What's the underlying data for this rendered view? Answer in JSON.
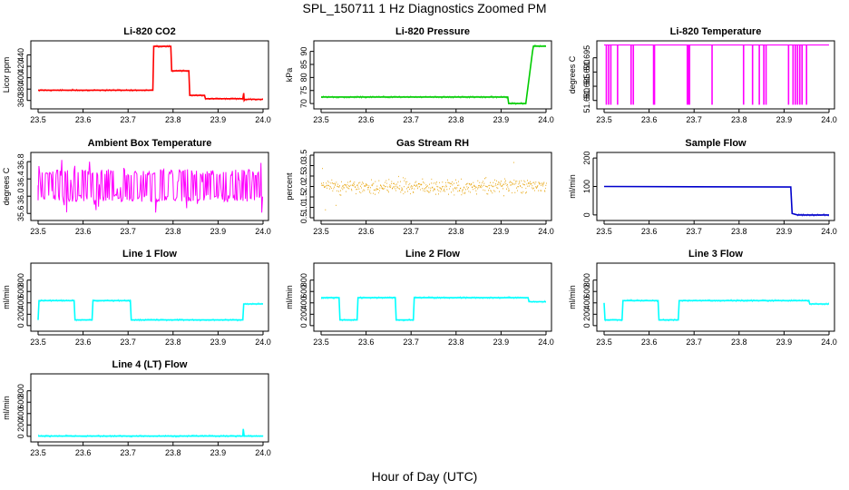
{
  "figure": {
    "title": "SPL_150711  1 Hz Diagnostics Zoomed PM",
    "xlabel": "Hour of Day (UTC)"
  },
  "chart_data": [
    {
      "type": "line",
      "title": "Li-820 CO2",
      "ylabel": "Licor ppm",
      "color": "#ff0000",
      "xlim": [
        23.5,
        24.0
      ],
      "ylim": [
        350,
        460
      ],
      "x_ticks": [
        "23.5",
        "23.6",
        "23.7",
        "23.8",
        "23.9",
        "24.0"
      ],
      "y_ticks": [
        "360",
        "380",
        "400",
        "420",
        "440"
      ],
      "x": [
        23.5,
        23.755,
        23.757,
        23.795,
        23.797,
        23.835,
        23.837,
        23.87,
        23.872,
        23.955,
        23.957,
        23.958,
        23.96,
        24.0
      ],
      "y": [
        378,
        378,
        455,
        455,
        412,
        412,
        369,
        369,
        363,
        363,
        373,
        360,
        362,
        362
      ]
    },
    {
      "type": "line",
      "title": "Li-820 Pressure",
      "ylabel": "kPa",
      "color": "#00cc00",
      "xlim": [
        23.5,
        24.0
      ],
      "ylim": [
        69,
        93
      ],
      "x_ticks": [
        "23.5",
        "23.6",
        "23.7",
        "23.8",
        "23.9",
        "24.0"
      ],
      "y_ticks": [
        "70",
        "75",
        "80",
        "85",
        "90"
      ],
      "x": [
        23.5,
        23.915,
        23.917,
        23.955,
        23.97,
        23.972,
        24.0
      ],
      "y": [
        72.5,
        72.5,
        70,
        70,
        90,
        92,
        92
      ]
    },
    {
      "type": "line",
      "title": "Li-820 Temperature",
      "ylabel": "degrees C",
      "color": "#ff00ff",
      "xlim": [
        23.5,
        24.0
      ],
      "ylim": [
        51.678,
        51.7
      ],
      "x_ticks": [
        "23.5",
        "23.6",
        "23.7",
        "23.8",
        "23.9",
        "24.0"
      ],
      "y_ticks": [
        "51.680",
        "51.685",
        "51.690",
        "51.695"
      ],
      "baseline": 51.6995,
      "low": 51.6785,
      "spikes": [
        23.505,
        23.51,
        23.515,
        23.53,
        23.56,
        23.565,
        23.61,
        23.612,
        23.685,
        23.688,
        23.69,
        23.74,
        23.81,
        23.83,
        23.845,
        23.855,
        23.86,
        23.91,
        23.92,
        23.925,
        23.93,
        23.935,
        23.94,
        23.95
      ]
    },
    {
      "type": "line",
      "title": "Ambient Box Temperature",
      "ylabel": "degrees C",
      "color": "#ff00ff",
      "xlim": [
        23.5,
        24.0
      ],
      "ylim": [
        35.5,
        36.95
      ],
      "x_ticks": [
        "23.5",
        "23.6",
        "23.7",
        "23.8",
        "23.9",
        "24.0"
      ],
      "y_ticks": [
        "35.6",
        "36.0",
        "36.4",
        "36.8"
      ],
      "band_low": 35.95,
      "band_high": 36.55,
      "noise_min": 35.6,
      "noise_max": 36.85
    },
    {
      "type": "scatter",
      "title": "Gas Stream RH",
      "ylabel": "percent",
      "color": "#e6a000",
      "xlim": [
        23.5,
        24.0
      ],
      "ylim": [
        0.5,
        3.5
      ],
      "x_ticks": [
        "23.5",
        "23.6",
        "23.7",
        "23.8",
        "23.9",
        "24.0"
      ],
      "y_ticks": [
        "0.5",
        "1.0",
        "1.5",
        "2.0",
        "2.5",
        "3.0",
        "3.5"
      ],
      "center": 2.0,
      "spread": 0.35,
      "noise_min": 0.6,
      "noise_max": 3.3
    },
    {
      "type": "line",
      "title": "Sample Flow",
      "ylabel": "ml/min",
      "color": "#0000cc",
      "xlim": [
        23.5,
        24.0
      ],
      "ylim": [
        -10,
        210
      ],
      "x_ticks": [
        "23.5",
        "23.6",
        "23.7",
        "23.8",
        "23.9",
        "24.0"
      ],
      "y_ticks": [
        "0",
        "100",
        "200"
      ],
      "x": [
        23.5,
        23.915,
        23.918,
        23.93,
        24.0
      ],
      "y": [
        100,
        98,
        5,
        0,
        0
      ]
    },
    {
      "type": "line",
      "title": "Line 1 Flow",
      "ylabel": "ml/min",
      "color": "#00ffff",
      "xlim": [
        23.5,
        24.0
      ],
      "ylim": [
        -50,
        1050
      ],
      "x_ticks": [
        "23.5",
        "23.6",
        "23.7",
        "23.8",
        "23.9",
        "24.0"
      ],
      "y_ticks": [
        "0",
        "200",
        "400",
        "600",
        "800"
      ],
      "x": [
        23.5,
        23.502,
        23.58,
        23.582,
        23.62,
        23.622,
        23.705,
        23.707,
        23.955,
        23.957,
        24.0
      ],
      "y": [
        100,
        440,
        440,
        100,
        100,
        440,
        440,
        100,
        100,
        380,
        380
      ]
    },
    {
      "type": "line",
      "title": "Line 2 Flow",
      "ylabel": "ml/min",
      "color": "#00ffff",
      "xlim": [
        23.5,
        24.0
      ],
      "ylim": [
        -50,
        1050
      ],
      "x_ticks": [
        "23.5",
        "23.6",
        "23.7",
        "23.8",
        "23.9",
        "24.0"
      ],
      "y_ticks": [
        "0",
        "200",
        "400",
        "600",
        "800"
      ],
      "x": [
        23.5,
        23.54,
        23.542,
        23.58,
        23.582,
        23.665,
        23.667,
        23.705,
        23.707,
        23.96,
        23.962,
        24.0
      ],
      "y": [
        490,
        490,
        100,
        100,
        490,
        490,
        100,
        100,
        490,
        490,
        420,
        420
      ]
    },
    {
      "type": "line",
      "title": "Line 3 Flow",
      "ylabel": "ml/min",
      "color": "#00ffff",
      "xlim": [
        23.5,
        24.0
      ],
      "ylim": [
        -50,
        1050
      ],
      "x_ticks": [
        "23.5",
        "23.6",
        "23.7",
        "23.8",
        "23.9",
        "24.0"
      ],
      "y_ticks": [
        "0",
        "200",
        "400",
        "600",
        "800"
      ],
      "x": [
        23.5,
        23.502,
        23.54,
        23.542,
        23.62,
        23.622,
        23.665,
        23.667,
        23.955,
        23.957,
        24.0
      ],
      "y": [
        400,
        100,
        100,
        440,
        440,
        100,
        100,
        440,
        440,
        380,
        380
      ]
    },
    {
      "type": "line",
      "title": "Line 4 (LT) Flow",
      "ylabel": "ml/min",
      "color": "#00ffff",
      "xlim": [
        23.5,
        24.0
      ],
      "ylim": [
        -50,
        1050
      ],
      "x_ticks": [
        "23.5",
        "23.6",
        "23.7",
        "23.8",
        "23.9",
        "24.0"
      ],
      "y_ticks": [
        "0",
        "200",
        "400",
        "600",
        "800"
      ],
      "x": [
        23.5,
        23.955,
        23.956,
        23.958,
        24.0
      ],
      "y": [
        5,
        5,
        130,
        5,
        5
      ]
    }
  ]
}
